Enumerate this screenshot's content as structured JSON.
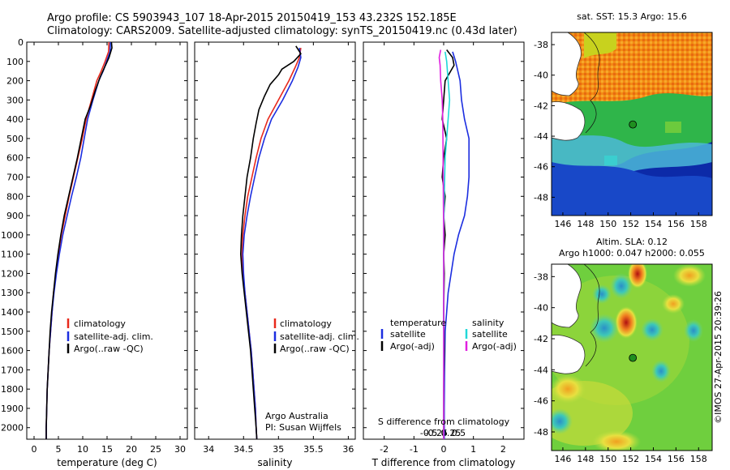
{
  "header": {
    "line1": "Argo profile: CS 5903943_107 18-Apr-2015 20150419_153 43.232S 152.185E",
    "line2": "Climatology: CARS2009. Satellite-adjusted climatology: synTS_20150419.nc (0.43d later)"
  },
  "colors": {
    "clim": "#e8291c",
    "sat": "#1c2ee0",
    "argo": "#000000",
    "sal_sat": "#21d8d8",
    "sal_argo": "#e020e0",
    "marker": "#1f8f1f"
  },
  "chart_data": [
    {
      "id": "temperature",
      "type": "line",
      "xlabel": "temperature (deg C)",
      "ylabel": "",
      "xlim": [
        -1.5,
        31.5
      ],
      "ylim": [
        2060,
        0
      ],
      "xticks": [
        0,
        5,
        10,
        15,
        20,
        25,
        30
      ],
      "yticks": [
        0,
        100,
        200,
        300,
        400,
        500,
        600,
        700,
        800,
        900,
        1000,
        1100,
        1200,
        1300,
        1400,
        1500,
        1600,
        1700,
        1800,
        1900,
        2000
      ],
      "legend": [
        "climatology",
        "satellite-adj. clim.",
        "Argo(..raw -QC)"
      ],
      "series": [
        {
          "name": "climatology",
          "color_key": "clim",
          "points": [
            [
              15.4,
              0
            ],
            [
              15.3,
              50
            ],
            [
              14.6,
              100
            ],
            [
              13.8,
              150
            ],
            [
              12.9,
              200
            ],
            [
              11.8,
              300
            ],
            [
              10.7,
              400
            ],
            [
              9.9,
              500
            ],
            [
              9.0,
              600
            ],
            [
              8.1,
              700
            ],
            [
              7.2,
              800
            ],
            [
              6.4,
              900
            ],
            [
              5.6,
              1000
            ],
            [
              5.0,
              1100
            ],
            [
              4.5,
              1200
            ],
            [
              4.0,
              1300
            ],
            [
              3.7,
              1400
            ],
            [
              3.4,
              1500
            ],
            [
              3.1,
              1600
            ],
            [
              2.9,
              1700
            ],
            [
              2.7,
              1800
            ],
            [
              2.6,
              1900
            ],
            [
              2.5,
              2000
            ],
            [
              2.5,
              2060
            ]
          ]
        },
        {
          "name": "satellite-adj. clim.",
          "color_key": "sat",
          "points": [
            [
              15.7,
              0
            ],
            [
              15.6,
              50
            ],
            [
              14.9,
              100
            ],
            [
              14.2,
              150
            ],
            [
              13.3,
              200
            ],
            [
              12.1,
              300
            ],
            [
              11.0,
              400
            ],
            [
              10.3,
              500
            ],
            [
              9.6,
              600
            ],
            [
              8.7,
              700
            ],
            [
              7.7,
              800
            ],
            [
              6.8,
              900
            ],
            [
              5.9,
              1000
            ],
            [
              5.2,
              1100
            ],
            [
              4.6,
              1200
            ],
            [
              4.1,
              1300
            ],
            [
              3.7,
              1400
            ],
            [
              3.4,
              1500
            ],
            [
              3.1,
              1600
            ],
            [
              2.9,
              1700
            ],
            [
              2.7,
              1800
            ],
            [
              2.6,
              1900
            ],
            [
              2.5,
              2000
            ],
            [
              2.5,
              2060
            ]
          ]
        },
        {
          "name": "Argo(..raw -QC)",
          "color_key": "argo",
          "points": [
            [
              15.9,
              0
            ],
            [
              16.0,
              30
            ],
            [
              15.4,
              80
            ],
            [
              14.5,
              130
            ],
            [
              13.6,
              180
            ],
            [
              12.6,
              250
            ],
            [
              11.6,
              330
            ],
            [
              10.5,
              400
            ],
            [
              9.7,
              500
            ],
            [
              8.9,
              600
            ],
            [
              8.0,
              700
            ],
            [
              7.1,
              800
            ],
            [
              6.2,
              900
            ],
            [
              5.5,
              1000
            ],
            [
              4.9,
              1100
            ],
            [
              4.4,
              1200
            ],
            [
              4.0,
              1300
            ],
            [
              3.6,
              1400
            ],
            [
              3.3,
              1500
            ],
            [
              3.1,
              1600
            ],
            [
              2.9,
              1700
            ],
            [
              2.7,
              1800
            ],
            [
              2.6,
              1900
            ],
            [
              2.5,
              2000
            ],
            [
              2.5,
              2060
            ]
          ]
        }
      ]
    },
    {
      "id": "salinity",
      "type": "line",
      "xlabel": "salinity",
      "xlim": [
        33.8,
        36.1
      ],
      "ylim": [
        2060,
        0
      ],
      "xticks": [
        34,
        34.5,
        35,
        35.5,
        36
      ],
      "legend": [
        "climatology",
        "satellite-adj. clim.",
        "Argo(..raw -QC)"
      ],
      "annotation": [
        "Argo Australia",
        "PI: Susan Wijffels"
      ],
      "series": [
        {
          "name": "climatology",
          "color_key": "clim",
          "points": [
            [
              35.32,
              30
            ],
            [
              35.3,
              80
            ],
            [
              35.24,
              130
            ],
            [
              35.15,
              200
            ],
            [
              35.0,
              300
            ],
            [
              34.85,
              400
            ],
            [
              34.75,
              500
            ],
            [
              34.68,
              600
            ],
            [
              34.62,
              700
            ],
            [
              34.56,
              800
            ],
            [
              34.52,
              900
            ],
            [
              34.49,
              1000
            ],
            [
              34.48,
              1100
            ],
            [
              34.49,
              1200
            ],
            [
              34.52,
              1300
            ],
            [
              34.55,
              1400
            ],
            [
              34.58,
              1500
            ],
            [
              34.61,
              1600
            ],
            [
              34.63,
              1700
            ],
            [
              34.65,
              1800
            ],
            [
              34.67,
              1900
            ],
            [
              34.68,
              2000
            ],
            [
              34.69,
              2060
            ]
          ]
        },
        {
          "name": "satellite-adj. clim.",
          "color_key": "sat",
          "points": [
            [
              35.3,
              30
            ],
            [
              35.32,
              80
            ],
            [
              35.28,
              130
            ],
            [
              35.2,
              200
            ],
            [
              35.06,
              300
            ],
            [
              34.9,
              400
            ],
            [
              34.8,
              500
            ],
            [
              34.72,
              600
            ],
            [
              34.66,
              700
            ],
            [
              34.6,
              800
            ],
            [
              34.55,
              900
            ],
            [
              34.51,
              1000
            ],
            [
              34.49,
              1100
            ],
            [
              34.5,
              1200
            ],
            [
              34.52,
              1300
            ],
            [
              34.55,
              1400
            ],
            [
              34.58,
              1500
            ],
            [
              34.61,
              1600
            ],
            [
              34.63,
              1700
            ],
            [
              34.65,
              1800
            ],
            [
              34.67,
              1900
            ],
            [
              34.68,
              2000
            ],
            [
              34.69,
              2060
            ]
          ]
        },
        {
          "name": "Argo(..raw -QC)",
          "color_key": "argo",
          "points": [
            [
              35.25,
              20
            ],
            [
              35.32,
              60
            ],
            [
              35.22,
              100
            ],
            [
              35.05,
              140
            ],
            [
              35.0,
              170
            ],
            [
              34.88,
              220
            ],
            [
              34.8,
              280
            ],
            [
              34.72,
              350
            ],
            [
              34.68,
              420
            ],
            [
              34.64,
              500
            ],
            [
              34.6,
              600
            ],
            [
              34.55,
              700
            ],
            [
              34.52,
              800
            ],
            [
              34.49,
              900
            ],
            [
              34.47,
              1000
            ],
            [
              34.46,
              1100
            ],
            [
              34.48,
              1200
            ],
            [
              34.51,
              1300
            ],
            [
              34.54,
              1400
            ],
            [
              34.57,
              1500
            ],
            [
              34.6,
              1600
            ],
            [
              34.62,
              1700
            ],
            [
              34.64,
              1800
            ],
            [
              34.66,
              1900
            ],
            [
              34.68,
              2000
            ],
            [
              34.69,
              2060
            ]
          ]
        }
      ]
    },
    {
      "id": "difference",
      "type": "line",
      "xlabel": "T difference from climatology",
      "xlabel2": "S difference from climatology",
      "xlim": [
        -2.7,
        2.7
      ],
      "ylim": [
        2060,
        0
      ],
      "xticks": [
        -2,
        -1,
        0,
        1,
        2
      ],
      "xticks2": [
        -0.5,
        -0.25,
        0,
        0.25,
        0.5
      ],
      "legend": {
        "temperature_title": "temperature",
        "salinity_title": "salinity",
        "satellite": "satellite",
        "argo_adj": "Argo(-adj)"
      },
      "series": [
        {
          "name": "temperature satellite",
          "color_key": "sat",
          "points": [
            [
              0.3,
              50
            ],
            [
              0.4,
              100
            ],
            [
              0.55,
              200
            ],
            [
              0.6,
              300
            ],
            [
              0.7,
              400
            ],
            [
              0.85,
              500
            ],
            [
              0.85,
              600
            ],
            [
              0.85,
              700
            ],
            [
              0.8,
              800
            ],
            [
              0.7,
              900
            ],
            [
              0.5,
              1000
            ],
            [
              0.35,
              1100
            ],
            [
              0.25,
              1200
            ],
            [
              0.15,
              1300
            ],
            [
              0.1,
              1400
            ],
            [
              0.05,
              1500
            ],
            [
              0.03,
              1700
            ],
            [
              0.02,
              1900
            ],
            [
              0.02,
              2060
            ]
          ]
        },
        {
          "name": "temperature Argo(-adj)",
          "color_key": "argo",
          "points": [
            [
              0.1,
              40
            ],
            [
              0.3,
              80
            ],
            [
              0.35,
              120
            ],
            [
              0.05,
              200
            ],
            [
              0.0,
              300
            ],
            [
              -0.05,
              400
            ],
            [
              0.1,
              500
            ],
            [
              0.0,
              600
            ],
            [
              -0.05,
              700
            ],
            [
              0.05,
              800
            ],
            [
              0.0,
              900
            ],
            [
              0.05,
              1000
            ],
            [
              0.0,
              1100
            ],
            [
              0.02,
              1200
            ],
            [
              0.0,
              1400
            ],
            [
              0.02,
              1600
            ],
            [
              0.0,
              1800
            ],
            [
              0.0,
              2060
            ]
          ]
        },
        {
          "name": "salinity satellite",
          "color_key": "sal_sat",
          "points": [
            [
              0.05,
              50
            ],
            [
              0.1,
              100
            ],
            [
              0.15,
              200
            ],
            [
              0.2,
              300
            ],
            [
              0.15,
              400
            ],
            [
              0.05,
              600
            ],
            [
              0.02,
              800
            ],
            [
              0.0,
              1000
            ],
            [
              0.0,
              1400
            ],
            [
              0.0,
              2060
            ]
          ]
        },
        {
          "name": "salinity Argo(-adj)",
          "color_key": "sal_argo",
          "points": [
            [
              -0.1,
              40
            ],
            [
              -0.15,
              80
            ],
            [
              -0.12,
              120
            ],
            [
              -0.1,
              200
            ],
            [
              -0.05,
              300
            ],
            [
              -0.03,
              400
            ],
            [
              -0.02,
              600
            ],
            [
              -0.01,
              800
            ],
            [
              0.0,
              1000
            ],
            [
              0.0,
              2060
            ]
          ]
        }
      ]
    },
    {
      "id": "sst_map",
      "type": "heatmap",
      "title": "sat. SST: 15.3 Argo: 15.6",
      "xlim": [
        145,
        159.2
      ],
      "ylim": [
        -49.2,
        -37.2
      ],
      "xticks": [
        146,
        148,
        150,
        152,
        154,
        156,
        158
      ],
      "yticks": [
        -38,
        -40,
        -42,
        -44,
        -46,
        -48
      ],
      "marker": [
        152.185,
        -43.232
      ]
    },
    {
      "id": "sla_map",
      "type": "heatmap",
      "title1": "Altim. SLA: 0.12",
      "title2": "Argo h1000: 0.047 h2000: 0.055",
      "xlim": [
        145,
        159.2
      ],
      "ylim": [
        -49.2,
        -37.2
      ],
      "xticks": [
        146,
        148,
        150,
        152,
        154,
        156,
        158
      ],
      "yticks": [
        -38,
        -40,
        -42,
        -44,
        -46,
        -48
      ],
      "marker": [
        152.185,
        -43.232
      ],
      "footer": "©IMOS 27-Apr-2015 20:39:26"
    }
  ]
}
